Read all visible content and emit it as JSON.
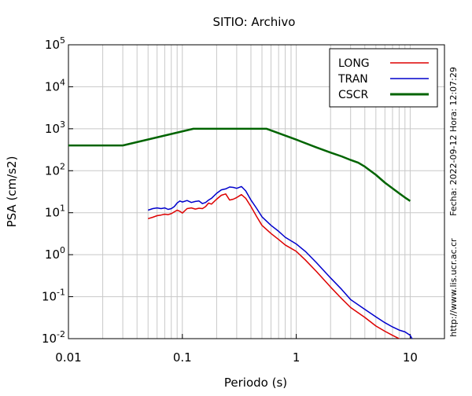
{
  "chart_data": {
    "type": "line",
    "title": "SITIO: Archivo",
    "xlabel": "Periodo (s)",
    "ylabel": "PSA (cm/s2)",
    "x_scale": "log",
    "y_scale": "log",
    "xlim": [
      0.01,
      20
    ],
    "ylim": [
      0.01,
      100000
    ],
    "grid": true,
    "legend_position": "top-right",
    "x_ticks": [
      {
        "value": 0.01,
        "label": "0.01"
      },
      {
        "value": 0.1,
        "label": "0.1"
      },
      {
        "value": 1,
        "label": "1"
      },
      {
        "value": 10,
        "label": "10"
      }
    ],
    "y_ticks": [
      {
        "value": 0.01,
        "base": "10",
        "exp": "-2"
      },
      {
        "value": 0.1,
        "base": "10",
        "exp": "-1"
      },
      {
        "value": 1,
        "base": "10",
        "exp": "0"
      },
      {
        "value": 10,
        "base": "10",
        "exp": "1"
      },
      {
        "value": 100,
        "base": "10",
        "exp": "2"
      },
      {
        "value": 1000,
        "base": "10",
        "exp": "3"
      },
      {
        "value": 10000,
        "base": "10",
        "exp": "4"
      },
      {
        "value": 100000,
        "base": "10",
        "exp": "5"
      }
    ],
    "series": [
      {
        "name": "LONG",
        "color": "#dd0000",
        "x": [
          0.05,
          0.055,
          0.06,
          0.065,
          0.07,
          0.075,
          0.08,
          0.085,
          0.09,
          0.095,
          0.1,
          0.11,
          0.12,
          0.13,
          0.14,
          0.15,
          0.16,
          0.17,
          0.18,
          0.2,
          0.22,
          0.24,
          0.26,
          0.28,
          0.3,
          0.33,
          0.36,
          0.4,
          0.45,
          0.5,
          0.6,
          0.7,
          0.8,
          1.0,
          1.2,
          1.5,
          2.0,
          2.5,
          3.0,
          4.0,
          5.0,
          6.0,
          7.0,
          8.0,
          9.0,
          10.0
        ],
        "y": [
          7.2,
          7.8,
          8.5,
          8.8,
          9.2,
          9.0,
          9.5,
          10.5,
          11.5,
          10.8,
          9.8,
          12.5,
          13.0,
          12.2,
          12.8,
          12.5,
          14.0,
          17.0,
          16.0,
          21.0,
          26.0,
          28.0,
          20.0,
          21.0,
          23.0,
          27.0,
          22.0,
          14.0,
          8.0,
          5.0,
          3.2,
          2.3,
          1.7,
          1.2,
          0.75,
          0.4,
          0.17,
          0.09,
          0.055,
          0.032,
          0.02,
          0.015,
          0.012,
          0.01,
          0.0085,
          0.0075
        ]
      },
      {
        "name": "TRAN",
        "color": "#0000cc",
        "x": [
          0.05,
          0.055,
          0.06,
          0.065,
          0.07,
          0.075,
          0.08,
          0.085,
          0.09,
          0.095,
          0.1,
          0.11,
          0.12,
          0.13,
          0.14,
          0.15,
          0.16,
          0.17,
          0.18,
          0.2,
          0.22,
          0.24,
          0.26,
          0.28,
          0.3,
          0.33,
          0.36,
          0.4,
          0.45,
          0.5,
          0.6,
          0.7,
          0.8,
          1.0,
          1.2,
          1.5,
          2.0,
          2.5,
          3.0,
          4.0,
          5.0,
          6.0,
          7.0,
          8.0,
          9.0,
          10.0,
          10.5
        ],
        "y": [
          11.5,
          12.5,
          13.0,
          12.5,
          13.0,
          12.0,
          12.5,
          14.0,
          17.0,
          19.0,
          18.0,
          19.5,
          17.5,
          18.5,
          19.0,
          16.5,
          17.5,
          20.0,
          22.0,
          29.0,
          35.0,
          37.0,
          41.0,
          40.0,
          38.0,
          42.0,
          33.0,
          20.0,
          12.5,
          8.0,
          5.0,
          3.6,
          2.6,
          1.8,
          1.2,
          0.65,
          0.28,
          0.15,
          0.085,
          0.05,
          0.033,
          0.024,
          0.019,
          0.016,
          0.0145,
          0.012,
          0.0095
        ]
      },
      {
        "name": "CSCR",
        "color": "#006400",
        "x": [
          0.01,
          0.03,
          0.125,
          0.55,
          1.0,
          1.5,
          2.0,
          2.5,
          3.0,
          3.5,
          4.0,
          5.0,
          6.0,
          7.0,
          8.0,
          9.0,
          10.0
        ],
        "y": [
          400,
          400,
          1000,
          1000,
          550,
          360,
          270,
          220,
          180,
          155,
          125,
          80,
          52,
          38,
          29,
          23,
          19
        ]
      }
    ]
  },
  "side_text": {
    "date_stamp": "Fecha: 2022-09-12 Hora: 12:07:29",
    "url": "http://www.lis.ucr.ac.cr"
  }
}
